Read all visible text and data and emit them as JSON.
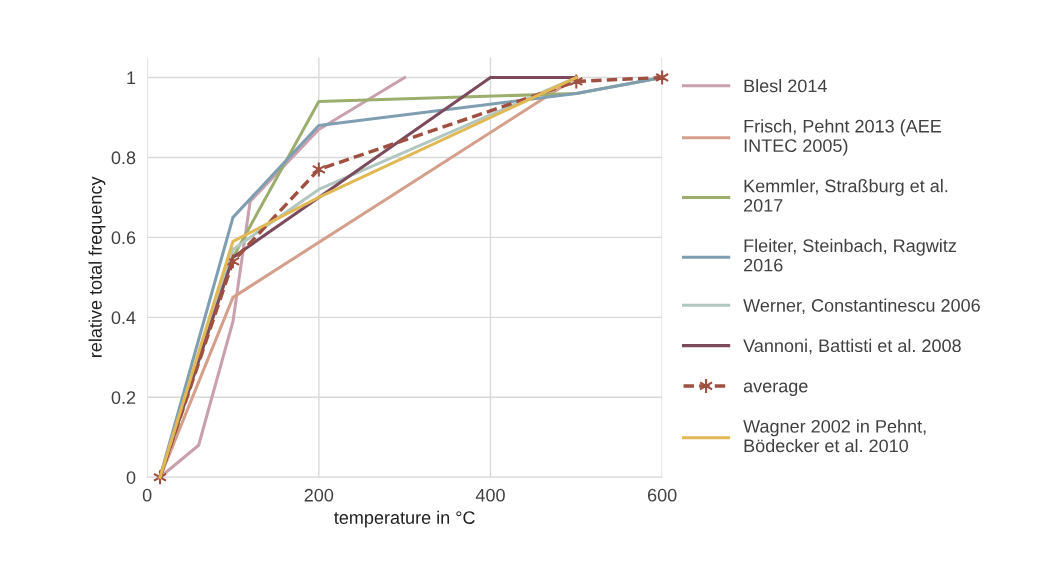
{
  "chart_data": {
    "type": "line",
    "xlabel": "temperature in °C",
    "ylabel": "relative total frequency",
    "xlim": [
      0,
      600
    ],
    "xticks": [
      0,
      200,
      400,
      600
    ],
    "ylim": [
      0,
      1.05
    ],
    "yticks": [
      0,
      0.2,
      0.4,
      0.6,
      0.8,
      1
    ],
    "grid": true,
    "legend": "right",
    "marker": "none",
    "line_style": "solid",
    "series": [
      {
        "name": "Blesl 2014",
        "color": "#c9a0ad",
        "x": [
          15,
          60,
          100,
          120,
          200,
          300
        ],
        "values": [
          0,
          0.08,
          0.39,
          0.69,
          0.87,
          1
        ]
      },
      {
        "name": "Frisch, Pehnt 2013 (AEE\nINTEC 2005)",
        "color": "#d4a08c",
        "x": [
          15,
          100,
          500
        ],
        "values": [
          0,
          0.45,
          1
        ]
      },
      {
        "name": "Kemmler, Straßburg et al.\n2017",
        "color": "#9bae6e",
        "x": [
          15,
          100,
          200,
          500,
          600
        ],
        "values": [
          0,
          0.55,
          0.94,
          0.96,
          1
        ]
      },
      {
        "name": "Fleiter, Steinbach, Ragwitz\n2016",
        "color": "#7f9eb2",
        "x": [
          15,
          100,
          200,
          500,
          600
        ],
        "values": [
          0,
          0.65,
          0.88,
          0.96,
          1
        ]
      },
      {
        "name": "Werner, Constantinescu 2006",
        "color": "#b2c7c2",
        "x": [
          15,
          100,
          200,
          500
        ],
        "values": [
          0,
          0.57,
          0.72,
          1
        ]
      },
      {
        "name": "Vannoni, Battisti et al. 2008",
        "color": "#7b4b5d",
        "x": [
          15,
          100,
          200,
          400,
          500
        ],
        "values": [
          0,
          0.55,
          0.7,
          1,
          1
        ]
      },
      {
        "name": "average",
        "color": "#a05040",
        "x": [
          15,
          100,
          200,
          500,
          600
        ],
        "values": [
          0,
          0.54,
          0.77,
          0.99,
          1
        ],
        "marker": "cross",
        "line_style": "dashed"
      },
      {
        "name": "Wagner 2002 in Pehnt,\nBödecker et al. 2010",
        "color": "#e0b955",
        "x": [
          15,
          100,
          200,
          500
        ],
        "values": [
          0,
          0.59,
          0.7,
          1
        ]
      }
    ]
  }
}
